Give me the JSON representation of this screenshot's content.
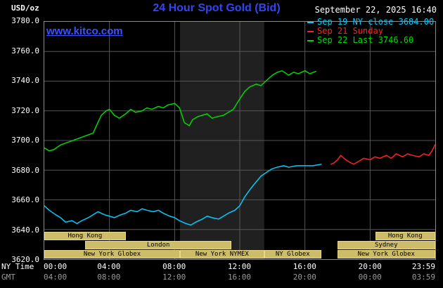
{
  "header": {
    "units": "USD/oz",
    "title": "24 Hour Spot Gold (Bid)",
    "datetime": "September 22, 2025 16:40",
    "watermark": "www.kitco.com"
  },
  "legend": [
    {
      "label": "Sep 19 NY close 3684.00",
      "color": "#00ccff"
    },
    {
      "label": "Sep 21 Sunday",
      "color": "#ff2222"
    },
    {
      "label": "Sep 22 Last 3746.60",
      "color": "#00d800"
    }
  ],
  "colors": {
    "background": "#000000",
    "title": "#3346ee",
    "watermark": "#3952ff",
    "text": "#ffffff",
    "gmt": "#9a9a9a",
    "grid": "#565656",
    "frame": "#8a8a8a",
    "band": "#202020",
    "session_fill": "#cdbd68",
    "session_border": "#e8d98a",
    "session_text": "#000000"
  },
  "axes": {
    "y_ticks": [
      "3780.0",
      "3760.0",
      "3740.0",
      "3720.0",
      "3700.0",
      "3680.0",
      "3660.0",
      "3640.0",
      "3620.0"
    ],
    "x_rows": [
      {
        "label": "NY Time",
        "ticks": [
          "00:00",
          "04:00",
          "08:00",
          "12:00",
          "16:00",
          "20:00",
          "23:59"
        ],
        "color": "#ffffff"
      },
      {
        "label": "GMT",
        "ticks": [
          "04:00",
          "08:00",
          "12:00",
          "16:00",
          "20:00",
          "00:00",
          "03:59"
        ],
        "color": "#9a9a9a"
      }
    ]
  },
  "sessions": [
    {
      "label": "Hong Kong",
      "row": 0,
      "from": 0,
      "to": 5
    },
    {
      "label": "Hong Kong",
      "row": 0,
      "from": 20.33,
      "to": 23.98
    },
    {
      "label": "London",
      "row": 1,
      "from": 2.5,
      "to": 11.5
    },
    {
      "label": "Sydney",
      "row": 1,
      "from": 18,
      "to": 23.98
    },
    {
      "label": "New York Globex",
      "row": 2,
      "from": 0,
      "to": 8.33
    },
    {
      "label": "New York NYMEX",
      "row": 2,
      "from": 8.33,
      "to": 13.5
    },
    {
      "label": "NY Globex",
      "row": 2,
      "from": 13.5,
      "to": 17
    },
    {
      "label": "New York Globex",
      "row": 2,
      "from": 18,
      "to": 23.98
    }
  ],
  "chart_data": {
    "type": "line",
    "title": "24 Hour Spot Gold (Bid)",
    "xlabel": "NY Time (hours)",
    "ylabel": "USD/oz",
    "xlim": [
      0,
      24
    ],
    "ylim": [
      3620,
      3780
    ],
    "grid_on": true,
    "legend_position": "top-right",
    "grid": {
      "x_hours": [
        4,
        8,
        12,
        16,
        20
      ],
      "y_values": [
        3640,
        3660,
        3680,
        3700,
        3720,
        3740,
        3760
      ]
    },
    "bands": [
      {
        "from": 8.33,
        "to": 13.5,
        "color": "#202020",
        "meaning": "New York NYMEX session"
      }
    ],
    "series": [
      {
        "name": "Sep 19 NY close 3684.00",
        "color": "#00ccff",
        "x": [
          0,
          0.3,
          0.7,
          1,
          1.3,
          1.7,
          2,
          2.3,
          2.7,
          3,
          3.3,
          3.7,
          4,
          4.3,
          4.7,
          5,
          5.3,
          5.7,
          6,
          6.3,
          6.7,
          7,
          7.3,
          7.7,
          8,
          8.3,
          8.7,
          9,
          9.3,
          9.7,
          10,
          10.3,
          10.7,
          11,
          11.3,
          11.7,
          12,
          12.3,
          12.7,
          13,
          13.3,
          13.7,
          14,
          14.3,
          14.7,
          15,
          15.5,
          16,
          16.5,
          17
        ],
        "values": [
          3656,
          3653,
          3650,
          3648,
          3645,
          3646,
          3644,
          3646,
          3648,
          3650,
          3652,
          3650,
          3649,
          3648,
          3650,
          3651,
          3653,
          3652,
          3654,
          3653,
          3652,
          3653,
          3651,
          3649,
          3648,
          3646,
          3644,
          3643,
          3645,
          3647,
          3649,
          3648,
          3647,
          3649,
          3651,
          3653,
          3656,
          3662,
          3668,
          3672,
          3676,
          3679,
          3681,
          3682,
          3683,
          3682,
          3683,
          3683,
          3683,
          3684
        ]
      },
      {
        "name": "Sep 21 Sunday",
        "color": "#ff2222",
        "x": [
          17.6,
          17.8,
          18,
          18.2,
          18.5,
          18.8,
          19,
          19.3,
          19.6,
          20,
          20.3,
          20.6,
          21,
          21.3,
          21.6,
          22,
          22.3,
          22.6,
          23,
          23.3,
          23.6,
          23.8,
          23.98
        ],
        "values": [
          3684,
          3685,
          3687,
          3690,
          3687,
          3685,
          3684,
          3686,
          3688,
          3687,
          3689,
          3688,
          3690,
          3688,
          3691,
          3689,
          3691,
          3690,
          3689,
          3691,
          3690,
          3693,
          3697
        ]
      },
      {
        "name": "Sep 22 Last 3746.60",
        "color": "#00d800",
        "x": [
          0,
          0.3,
          0.6,
          1,
          1.5,
          2,
          2.5,
          3,
          3.2,
          3.5,
          3.8,
          4,
          4.3,
          4.6,
          5,
          5.3,
          5.6,
          6,
          6.3,
          6.6,
          7,
          7.3,
          7.6,
          8,
          8.3,
          8.6,
          8.9,
          9.1,
          9.4,
          9.7,
          10,
          10.3,
          10.6,
          11,
          11.3,
          11.6,
          12,
          12.3,
          12.6,
          13,
          13.3,
          13.6,
          14,
          14.3,
          14.6,
          15,
          15.3,
          15.6,
          16,
          16.3,
          16.67
        ],
        "values": [
          3695,
          3693,
          3694,
          3697,
          3699,
          3701,
          3703,
          3705,
          3710,
          3717,
          3720,
          3721,
          3717,
          3715,
          3718,
          3721,
          3719,
          3720,
          3722,
          3721,
          3723,
          3722,
          3724,
          3725,
          3722,
          3712,
          3710,
          3714,
          3716,
          3717,
          3718,
          3715,
          3716,
          3717,
          3719,
          3721,
          3728,
          3733,
          3736,
          3738,
          3737,
          3740,
          3744,
          3746,
          3747,
          3744,
          3746,
          3745,
          3747,
          3745,
          3746.6
        ]
      }
    ]
  }
}
